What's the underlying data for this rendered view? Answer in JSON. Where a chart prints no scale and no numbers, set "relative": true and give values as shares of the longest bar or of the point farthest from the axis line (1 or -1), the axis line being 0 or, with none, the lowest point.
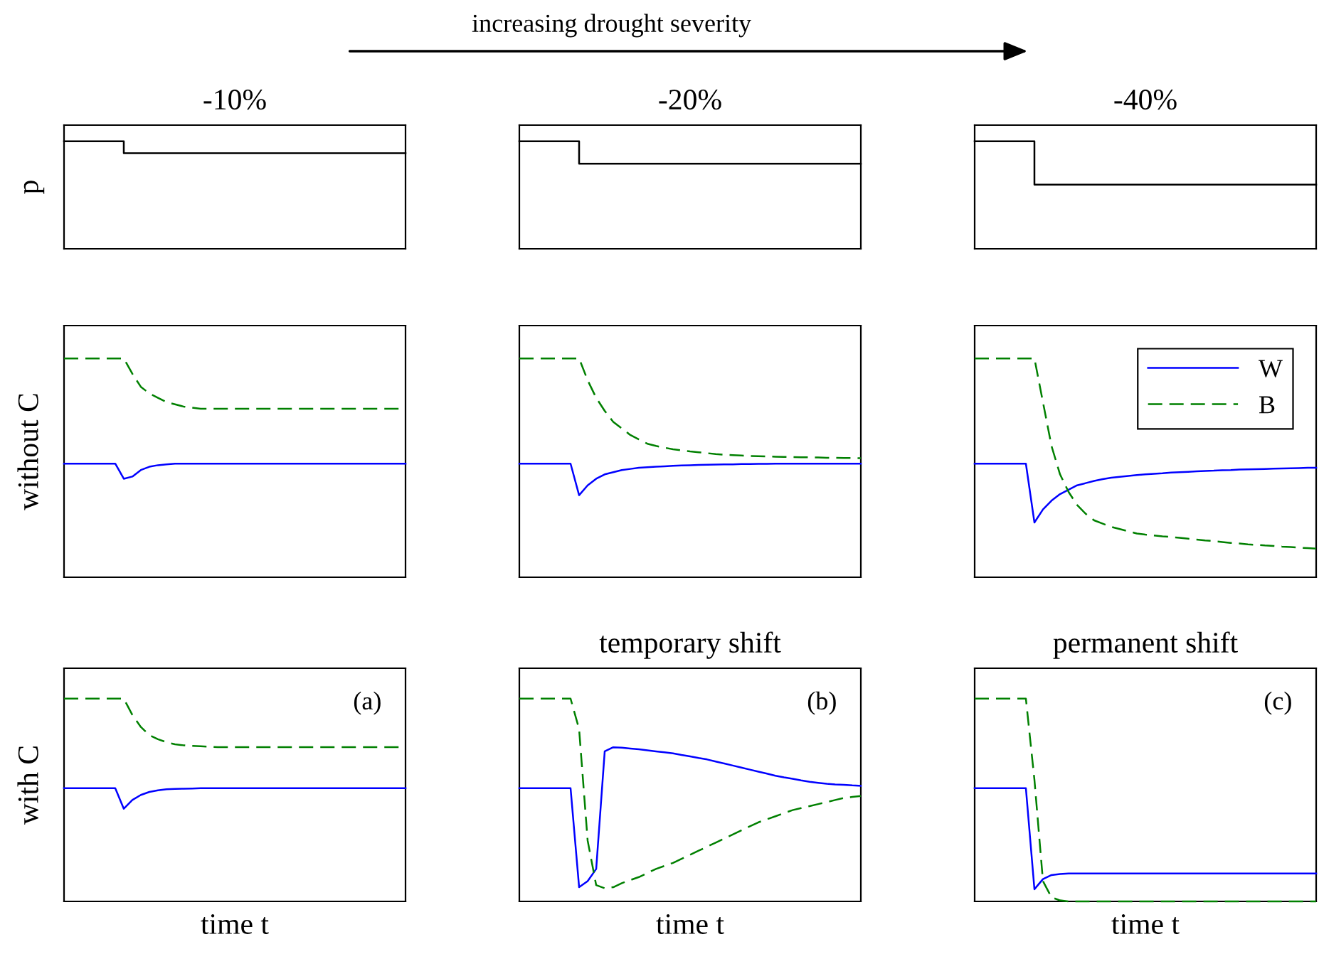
{
  "chart_data": [
    {
      "type": "step",
      "relative": true,
      "tick_labels": false,
      "subtitle": "-10%",
      "ylabel": "p",
      "categories": [
        null,
        null,
        null,
        null,
        null,
        null,
        null,
        null,
        null,
        null,
        null,
        null,
        null,
        null,
        null,
        null,
        null,
        null,
        null,
        null,
        null,
        null,
        null,
        null,
        null,
        null,
        null,
        null,
        null,
        null,
        null,
        null,
        null,
        null,
        null,
        null,
        null,
        null,
        null,
        null,
        null
      ],
      "series": [
        {
          "color": "#000000",
          "line_style": "solid",
          "values": [
            1,
            1,
            1,
            1,
            1,
            1,
            1,
            0.889,
            0.889,
            0.889,
            0.889,
            0.889,
            0.889,
            0.889,
            0.889,
            0.889,
            0.889,
            0.889,
            0.889,
            0.889,
            0.889,
            0.889,
            0.889,
            0.889,
            0.889,
            0.889,
            0.889,
            0.889,
            0.889,
            0.889,
            0.889,
            0.889,
            0.889,
            0.889,
            0.889,
            0.889,
            0.889,
            0.889,
            0.889,
            0.889,
            0.889
          ]
        }
      ]
    },
    {
      "type": "step",
      "relative": true,
      "tick_labels": false,
      "title": "increasing drought severity",
      "subtitle": "-20%",
      "categories": [
        null,
        null,
        null,
        null,
        null,
        null,
        null,
        null,
        null,
        null,
        null,
        null,
        null,
        null,
        null,
        null,
        null,
        null,
        null,
        null,
        null,
        null,
        null,
        null,
        null,
        null,
        null,
        null,
        null,
        null,
        null,
        null,
        null,
        null,
        null,
        null,
        null,
        null,
        null,
        null,
        null
      ],
      "series": [
        {
          "color": "#000000",
          "line_style": "solid",
          "values": [
            1,
            1,
            1,
            1,
            1,
            1,
            1,
            0.792,
            0.792,
            0.792,
            0.792,
            0.792,
            0.792,
            0.792,
            0.792,
            0.792,
            0.792,
            0.792,
            0.792,
            0.792,
            0.792,
            0.792,
            0.792,
            0.792,
            0.792,
            0.792,
            0.792,
            0.792,
            0.792,
            0.792,
            0.792,
            0.792,
            0.792,
            0.792,
            0.792,
            0.792,
            0.792,
            0.792,
            0.792,
            0.792,
            0.792
          ]
        }
      ]
    },
    {
      "type": "step",
      "relative": true,
      "tick_labels": false,
      "subtitle": "-40%",
      "categories": [
        null,
        null,
        null,
        null,
        null,
        null,
        null,
        null,
        null,
        null,
        null,
        null,
        null,
        null,
        null,
        null,
        null,
        null,
        null,
        null,
        null,
        null,
        null,
        null,
        null,
        null,
        null,
        null,
        null,
        null,
        null,
        null,
        null,
        null,
        null,
        null,
        null,
        null,
        null,
        null,
        null
      ],
      "series": [
        {
          "color": "#000000",
          "line_style": "solid",
          "values": [
            1,
            1,
            1,
            1,
            1,
            1,
            1,
            0.597,
            0.597,
            0.597,
            0.597,
            0.597,
            0.597,
            0.597,
            0.597,
            0.597,
            0.597,
            0.597,
            0.597,
            0.597,
            0.597,
            0.597,
            0.597,
            0.597,
            0.597,
            0.597,
            0.597,
            0.597,
            0.597,
            0.597,
            0.597,
            0.597,
            0.597,
            0.597,
            0.597,
            0.597,
            0.597,
            0.597,
            0.597,
            0.597,
            0.597
          ]
        }
      ]
    },
    {
      "type": "line",
      "relative": true,
      "tick_labels": false,
      "ylabel": "without C",
      "categories": [
        null,
        null,
        null,
        null,
        null,
        null,
        null,
        null,
        null,
        null,
        null,
        null,
        null,
        null,
        null,
        null,
        null,
        null,
        null,
        null,
        null,
        null,
        null,
        null,
        null,
        null,
        null,
        null,
        null,
        null,
        null,
        null,
        null,
        null,
        null,
        null,
        null,
        null,
        null,
        null,
        null
      ],
      "series": [
        {
          "color": "#0000ff",
          "line_style": "solid",
          "values": [
            0.519,
            0.519,
            0.519,
            0.519,
            0.519,
            0.519,
            0.519,
            0.45,
            0.46,
            0.49,
            0.505,
            0.512,
            0.516,
            0.519,
            0.519,
            0.519,
            0.519,
            0.519,
            0.519,
            0.519,
            0.519,
            0.519,
            0.519,
            0.519,
            0.519,
            0.519,
            0.519,
            0.519,
            0.519,
            0.519,
            0.519,
            0.519,
            0.519,
            0.519,
            0.519,
            0.519,
            0.519,
            0.519,
            0.519,
            0.519,
            0.519
          ]
        },
        {
          "color": "#008000",
          "line_style": "dashed",
          "values": [
            1,
            1,
            1,
            1,
            1,
            1,
            1,
            1,
            0.93,
            0.87,
            0.84,
            0.82,
            0.8,
            0.79,
            0.78,
            0.775,
            0.77,
            0.77,
            0.77,
            0.77,
            0.77,
            0.77,
            0.77,
            0.77,
            0.77,
            0.77,
            0.77,
            0.77,
            0.77,
            0.77,
            0.77,
            0.77,
            0.77,
            0.77,
            0.77,
            0.77,
            0.77,
            0.77,
            0.77,
            0.77,
            0.77
          ]
        }
      ]
    },
    {
      "type": "line",
      "relative": true,
      "tick_labels": false,
      "categories": [
        null,
        null,
        null,
        null,
        null,
        null,
        null,
        null,
        null,
        null,
        null,
        null,
        null,
        null,
        null,
        null,
        null,
        null,
        null,
        null,
        null,
        null,
        null,
        null,
        null,
        null,
        null,
        null,
        null,
        null,
        null,
        null,
        null,
        null,
        null,
        null,
        null,
        null,
        null,
        null,
        null
      ],
      "series": [
        {
          "color": "#0000ff",
          "line_style": "solid",
          "values": [
            0.519,
            0.519,
            0.519,
            0.519,
            0.519,
            0.519,
            0.519,
            0.375,
            0.42,
            0.45,
            0.47,
            0.48,
            0.49,
            0.495,
            0.5,
            0.503,
            0.505,
            0.507,
            0.509,
            0.511,
            0.512,
            0.513,
            0.514,
            0.515,
            0.516,
            0.516,
            0.517,
            0.517,
            0.518,
            0.518,
            0.519,
            0.519,
            0.519,
            0.519,
            0.519,
            0.519,
            0.519,
            0.519,
            0.519,
            0.519,
            0.519
          ]
        },
        {
          "color": "#008000",
          "line_style": "dashed",
          "values": [
            1,
            1,
            1,
            1,
            1,
            1,
            1,
            1,
            0.9,
            0.82,
            0.76,
            0.71,
            0.68,
            0.65,
            0.63,
            0.61,
            0.6,
            0.592,
            0.585,
            0.58,
            0.575,
            0.571,
            0.567,
            0.563,
            0.56,
            0.558,
            0.556,
            0.554,
            0.553,
            0.552,
            0.551,
            0.55,
            0.549,
            0.548,
            0.548,
            0.547,
            0.546,
            0.546,
            0.545,
            0.545,
            0.544
          ]
        }
      ]
    },
    {
      "type": "line",
      "relative": true,
      "tick_labels": false,
      "legend": "top right",
      "categories": [
        null,
        null,
        null,
        null,
        null,
        null,
        null,
        null,
        null,
        null,
        null,
        null,
        null,
        null,
        null,
        null,
        null,
        null,
        null,
        null,
        null,
        null,
        null,
        null,
        null,
        null,
        null,
        null,
        null,
        null,
        null,
        null,
        null,
        null,
        null,
        null,
        null,
        null,
        null,
        null,
        null
      ],
      "series": [
        {
          "name": "W",
          "color": "#0000ff",
          "line_style": "solid",
          "values": [
            0.519,
            0.519,
            0.519,
            0.519,
            0.519,
            0.519,
            0.519,
            0.25,
            0.31,
            0.35,
            0.38,
            0.4,
            0.42,
            0.43,
            0.44,
            0.448,
            0.455,
            0.459,
            0.463,
            0.467,
            0.47,
            0.473,
            0.475,
            0.478,
            0.48,
            0.482,
            0.484,
            0.486,
            0.487,
            0.489,
            0.49,
            0.492,
            0.493,
            0.494,
            0.495,
            0.496,
            0.497,
            0.498,
            0.499,
            0.5,
            0.5
          ]
        },
        {
          "name": "B",
          "color": "#008000",
          "line_style": "dashed",
          "values": [
            1,
            1,
            1,
            1,
            1,
            1,
            1,
            1,
            0.8,
            0.6,
            0.47,
            0.39,
            0.33,
            0.29,
            0.26,
            0.245,
            0.23,
            0.22,
            0.21,
            0.2,
            0.195,
            0.191,
            0.187,
            0.184,
            0.18,
            0.176,
            0.172,
            0.168,
            0.165,
            0.161,
            0.157,
            0.154,
            0.15,
            0.148,
            0.145,
            0.143,
            0.14,
            0.138,
            0.135,
            0.133,
            0.131
          ]
        }
      ]
    },
    {
      "type": "line",
      "relative": true,
      "tick_labels": false,
      "ylabel": "with C",
      "xlabel": "time t",
      "annotations": [
        "(a)"
      ],
      "categories": [
        null,
        null,
        null,
        null,
        null,
        null,
        null,
        null,
        null,
        null,
        null,
        null,
        null,
        null,
        null,
        null,
        null,
        null,
        null,
        null,
        null,
        null,
        null,
        null,
        null,
        null,
        null,
        null,
        null,
        null,
        null,
        null,
        null,
        null,
        null,
        null,
        null,
        null,
        null,
        null,
        null
      ],
      "series": [
        {
          "color": "#0000ff",
          "line_style": "solid",
          "values": [
            0.558,
            0.558,
            0.558,
            0.558,
            0.558,
            0.558,
            0.558,
            0.457,
            0.5,
            0.525,
            0.54,
            0.548,
            0.553,
            0.555,
            0.556,
            0.557,
            0.558,
            0.558,
            0.558,
            0.558,
            0.558,
            0.558,
            0.558,
            0.558,
            0.558,
            0.558,
            0.558,
            0.558,
            0.558,
            0.558,
            0.558,
            0.558,
            0.558,
            0.558,
            0.558,
            0.558,
            0.558,
            0.558,
            0.558,
            0.558,
            0.558
          ]
        },
        {
          "color": "#008000",
          "line_style": "dashed",
          "values": [
            1,
            1,
            1,
            1,
            1,
            1,
            1,
            1,
            0.92,
            0.86,
            0.82,
            0.8,
            0.785,
            0.775,
            0.77,
            0.767,
            0.765,
            0.763,
            0.761,
            0.761,
            0.761,
            0.761,
            0.761,
            0.761,
            0.761,
            0.761,
            0.761,
            0.761,
            0.761,
            0.761,
            0.761,
            0.761,
            0.761,
            0.761,
            0.761,
            0.761,
            0.761,
            0.761,
            0.761,
            0.761,
            0.761
          ]
        }
      ]
    },
    {
      "type": "line",
      "relative": true,
      "tick_labels": false,
      "title": "temporary shift",
      "xlabel": "time t",
      "annotations": [
        "(b)"
      ],
      "categories": [
        null,
        null,
        null,
        null,
        null,
        null,
        null,
        null,
        null,
        null,
        null,
        null,
        null,
        null,
        null,
        null,
        null,
        null,
        null,
        null,
        null,
        null,
        null,
        null,
        null,
        null,
        null,
        null,
        null,
        null,
        null,
        null,
        null,
        null,
        null,
        null,
        null,
        null,
        null,
        null,
        null
      ],
      "series": [
        {
          "color": "#0000ff",
          "line_style": "solid",
          "values": [
            0.558,
            0.558,
            0.558,
            0.558,
            0.558,
            0.558,
            0.558,
            0.07,
            0.1,
            0.16,
            0.74,
            0.76,
            0.758,
            0.754,
            0.75,
            0.745,
            0.74,
            0.735,
            0.73,
            0.722,
            0.715,
            0.707,
            0.7,
            0.69,
            0.68,
            0.67,
            0.66,
            0.65,
            0.64,
            0.63,
            0.62,
            0.612,
            0.605,
            0.597,
            0.59,
            0.585,
            0.58,
            0.577,
            0.575,
            0.572,
            0.57
          ]
        },
        {
          "color": "#008000",
          "line_style": "dashed",
          "values": [
            1,
            1,
            1,
            1,
            1,
            1,
            1,
            0.85,
            0.3,
            0.08,
            0.065,
            0.07,
            0.09,
            0.105,
            0.12,
            0.14,
            0.16,
            0.175,
            0.19,
            0.21,
            0.23,
            0.25,
            0.27,
            0.29,
            0.31,
            0.33,
            0.35,
            0.37,
            0.39,
            0.405,
            0.42,
            0.435,
            0.45,
            0.46,
            0.47,
            0.48,
            0.49,
            0.5,
            0.51,
            0.515,
            0.52
          ]
        }
      ]
    },
    {
      "type": "line",
      "relative": true,
      "tick_labels": false,
      "title": "permanent shift",
      "xlabel": "time t",
      "annotations": [
        "(c)"
      ],
      "categories": [
        null,
        null,
        null,
        null,
        null,
        null,
        null,
        null,
        null,
        null,
        null,
        null,
        null,
        null,
        null,
        null,
        null,
        null,
        null,
        null,
        null,
        null,
        null,
        null,
        null,
        null,
        null,
        null,
        null,
        null,
        null,
        null,
        null,
        null,
        null,
        null,
        null,
        null,
        null,
        null,
        null
      ],
      "series": [
        {
          "color": "#0000ff",
          "line_style": "solid",
          "values": [
            0.558,
            0.558,
            0.558,
            0.558,
            0.558,
            0.558,
            0.558,
            0.06,
            0.11,
            0.13,
            0.135,
            0.138,
            0.138,
            0.138,
            0.138,
            0.138,
            0.138,
            0.138,
            0.138,
            0.138,
            0.138,
            0.138,
            0.138,
            0.138,
            0.138,
            0.138,
            0.138,
            0.138,
            0.138,
            0.138,
            0.138,
            0.138,
            0.138,
            0.138,
            0.138,
            0.138,
            0.138,
            0.138,
            0.138,
            0.138,
            0.138
          ]
        },
        {
          "color": "#008000",
          "line_style": "dashed",
          "values": [
            1,
            1,
            1,
            1,
            1,
            1,
            1,
            0.6,
            0.1,
            0.02,
            0.005,
            0,
            0,
            0,
            0,
            0,
            0,
            0,
            0,
            0,
            0,
            0,
            0,
            0,
            0,
            0,
            0,
            0,
            0,
            0,
            0,
            0,
            0,
            0,
            0,
            0,
            0,
            0,
            0,
            0,
            0
          ]
        }
      ]
    }
  ]
}
